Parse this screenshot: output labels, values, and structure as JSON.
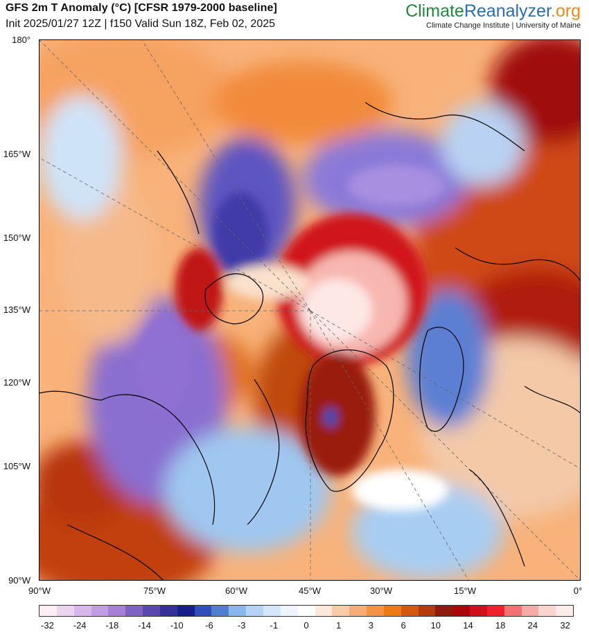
{
  "header": {
    "title": "GFS 2m T Anomaly (°C) [CFSR 1979-2000 baseline]",
    "subtitle": "Init 2025/01/27 12Z | f150 Valid Sun 18Z, Feb 02, 2025"
  },
  "brand": {
    "climate": "Climate",
    "reanalyzer": "Reanalyzer",
    "org": ".org",
    "affiliation": "Climate Change Institute | University of Maine"
  },
  "axes": {
    "left_labels": [
      "180°",
      "165°W",
      "150°W",
      "135°W",
      "120°W",
      "105°W",
      "90°W"
    ],
    "bottom_labels": [
      "90°W",
      "75°W",
      "60°W",
      "45°W",
      "30°W",
      "15°W",
      "0°"
    ]
  },
  "colorbar": {
    "colors": [
      "#fdeff3",
      "#ead4ee",
      "#d8b6e9",
      "#c29ce4",
      "#a57fd8",
      "#7e62c4",
      "#5a47b0",
      "#36309b",
      "#1a1e8a",
      "#2f4fbb",
      "#4f7fd3",
      "#86b7ee",
      "#b3d4f5",
      "#d5e7f9",
      "#eef5fd",
      "#ffffff",
      "#fde9dc",
      "#fbcaa6",
      "#f8ad76",
      "#f39444",
      "#ee7a16",
      "#d45910",
      "#b33b0c",
      "#8f1c08",
      "#a8080a",
      "#cf1016",
      "#ee2228",
      "#f57172",
      "#f8aaa6",
      "#fbd4cf",
      "#fdeceb"
    ],
    "tick_labels": [
      "-32",
      "-24",
      "-18",
      "-14",
      "-10",
      "-6",
      "-3",
      "-1",
      "0",
      "1",
      "3",
      "6",
      "10",
      "14",
      "18",
      "24",
      "32"
    ]
  }
}
